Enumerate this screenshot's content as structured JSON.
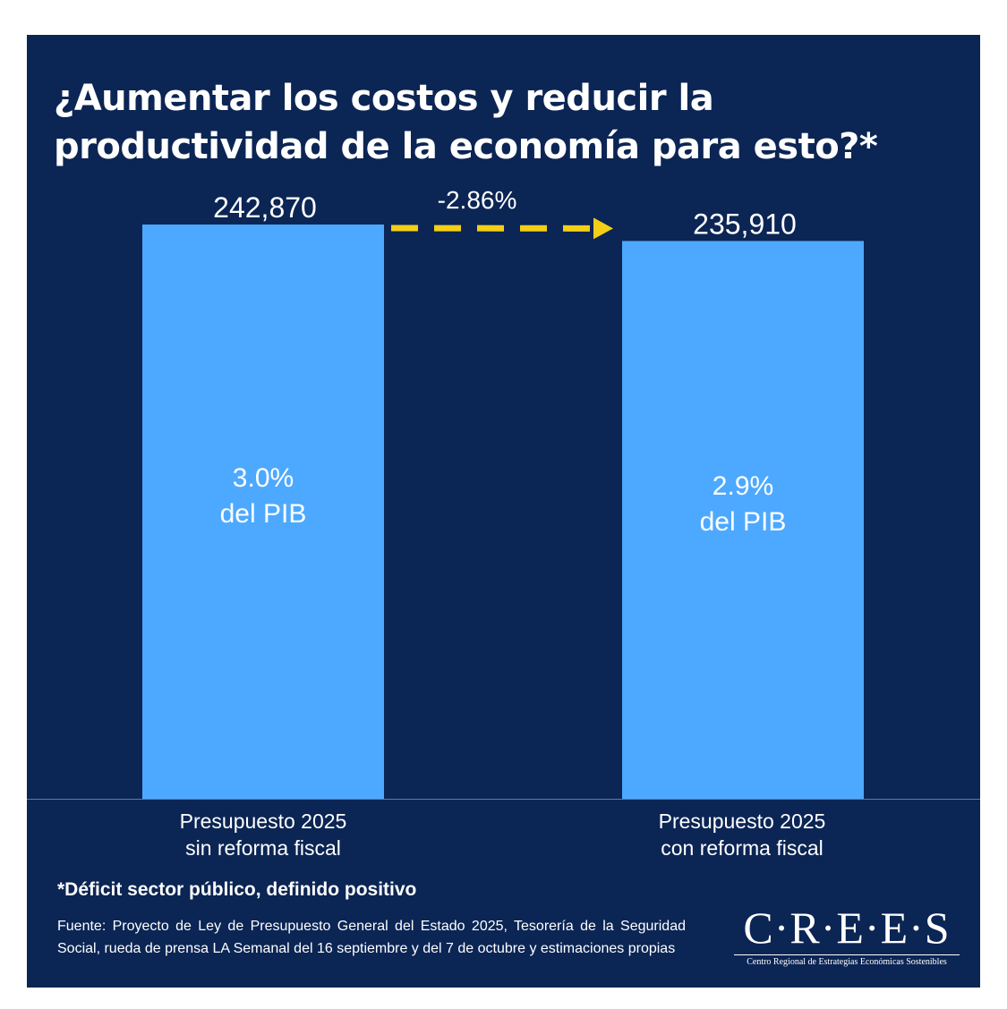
{
  "title": "¿Aumentar los costos y reducir la productividad de la economía para esto?*",
  "chart_data": {
    "type": "bar",
    "categories": [
      "Presupuesto 2025 sin reforma fiscal",
      "Presupuesto 2025 con reforma fiscal"
    ],
    "category_lines": [
      [
        "Presupuesto 2025",
        "sin reforma fiscal"
      ],
      [
        "Presupuesto 2025",
        "con reforma fiscal"
      ]
    ],
    "values": [
      242870,
      235910
    ],
    "value_labels": [
      "242,870",
      "235,910"
    ],
    "inner_labels": [
      [
        "3.0%",
        "del PIB"
      ],
      [
        "2.9%",
        "del PIB"
      ]
    ],
    "change_label": "-2.86%",
    "ylim": [
      0,
      242870
    ],
    "xlabel": "",
    "ylabel": "",
    "grid": false,
    "colors": {
      "bar": "#4da9ff",
      "arrow": "#f4cf15",
      "background": "#0b2554",
      "baseline": "#5f7aa6"
    }
  },
  "footnote": "*Déficit sector público, definido positivo",
  "source": "Fuente: Proyecto de Ley de Presupuesto General del Estado 2025, Tesorería de la Seguridad Social, rueda de prensa LA Semanal del 16 septiembre y del 7 de octubre y estimaciones propias",
  "logo": {
    "name": "C·R·E·E·S",
    "subtitle": "Centro Regional de Estrategias Económicas Sostenibles"
  }
}
